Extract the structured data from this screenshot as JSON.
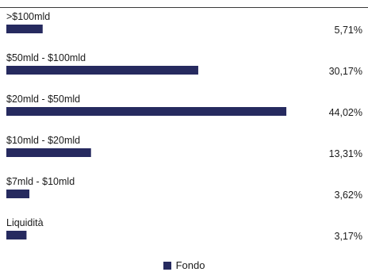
{
  "chart_data": {
    "type": "bar",
    "orientation": "horizontal",
    "categories": [
      ">$100mld",
      "$50mld - $100mld",
      "$20mld - $50mld",
      "$10mld - $20mld",
      "$7mld - $10mld",
      "Liquidità"
    ],
    "series": [
      {
        "name": "Fondo",
        "values": [
          5.71,
          30.17,
          44.02,
          13.31,
          3.62,
          3.17
        ],
        "labels": [
          "5,71%",
          "30,17%",
          "44,02%",
          "13,31%",
          "3,62%",
          "3,17%"
        ]
      }
    ],
    "xlim": [
      0,
      100
    ],
    "grid": false,
    "legend_position": "bottom-center",
    "colors": {
      "bar": "#262a5f",
      "text": "#1b1b1b"
    }
  },
  "legend": {
    "label": "Fondo"
  }
}
